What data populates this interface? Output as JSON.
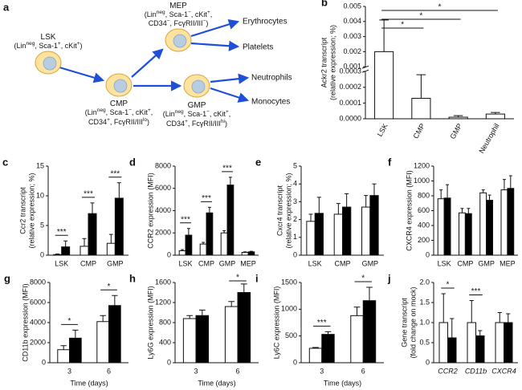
{
  "diagram": {
    "panel": "a",
    "nodes": [
      {
        "lines": [
          [
            "LSK"
          ],
          [
            "(Lin",
            "neg",
            ", Sca-1",
            "+",
            ", cKit",
            "+",
            ")"
          ]
        ]
      },
      {
        "lines": [
          [
            "CMP"
          ],
          [
            "(Lin",
            "neg",
            ", Sca-1",
            "−",
            ", cKit",
            "+",
            ","
          ],
          [
            "CD34",
            "+",
            ", FcγRII/III",
            "lo",
            ")"
          ]
        ]
      },
      {
        "lines": [
          [
            "MEP"
          ],
          [
            "(Lin",
            "neg",
            ", Sca-1",
            "−",
            ", cKit",
            "+",
            ","
          ],
          [
            "CD34",
            "−",
            ", FcγRII/III",
            "−",
            ")"
          ]
        ]
      },
      {
        "lines": [
          [
            "GMP"
          ],
          [
            "(Lin",
            "neg",
            ", Sca-1",
            "−",
            ", cKit",
            "+",
            ","
          ],
          [
            "CD34",
            "+",
            ", FcγRII/III",
            "hi",
            ")"
          ]
        ]
      }
    ],
    "outputs": [
      "Erythrocytes",
      "Platelets",
      "Neutrophils",
      "Monocytes"
    ]
  },
  "chart_data": [
    {
      "type": "bar",
      "panel": "b",
      "ylabel": [
        "Ackr2 transcript",
        "(relative expression; %)"
      ],
      "categories": [
        "LSK",
        "CMP",
        "GMP",
        "Neutrophil"
      ],
      "series": [
        {
          "color": "#ffffff",
          "values": [
            0.002,
            0.00013,
            1e-05,
            3e-05
          ],
          "errors": [
            0.0021,
            0.00015,
            1e-05,
            1e-05
          ]
        }
      ],
      "ylim": [
        0,
        0.005
      ],
      "ybreak": [
        0.0003,
        0.001
      ],
      "yticks": [
        {
          "value": 0,
          "label": "0.0000"
        },
        0.0001,
        0.0002,
        0.0003,
        0.001,
        0.002,
        0.003,
        0.004,
        0.005
      ],
      "stars": [
        null,
        "*",
        "*",
        "*"
      ]
    },
    {
      "type": "bar",
      "panel": "c",
      "ylabel": [
        "Ccr2 transcript",
        "(relative expression; %)"
      ],
      "categories": [
        "LSK",
        "CMP",
        "GMP"
      ],
      "series": [
        {
          "color": "#ffffff",
          "values": [
            0.1,
            1.5,
            2.0
          ],
          "errors": [
            0.1,
            1.3,
            1.5
          ]
        },
        {
          "color": "#000000",
          "values": [
            1.4,
            7.0,
            9.6
          ],
          "errors": [
            1.0,
            1.8,
            2.6
          ]
        }
      ],
      "ylim": [
        0,
        15
      ],
      "yticks": [
        0,
        5,
        10,
        15
      ],
      "stars": [
        "***",
        "***",
        "***"
      ]
    },
    {
      "type": "bar",
      "panel": "d",
      "ylabel": [
        "CCR2 expression (MFI)"
      ],
      "categories": [
        "LSK",
        "CMP",
        "GMP",
        "MEP"
      ],
      "series": [
        {
          "color": "#ffffff",
          "values": [
            400,
            1000,
            2000,
            250
          ],
          "errors": [
            100,
            150,
            200,
            50
          ]
        },
        {
          "color": "#000000",
          "values": [
            1800,
            3800,
            6300,
            300
          ],
          "errors": [
            600,
            500,
            700,
            50
          ]
        }
      ],
      "ylim": [
        0,
        8000
      ],
      "yticks": [
        0,
        2000,
        4000,
        6000,
        8000
      ],
      "stars": [
        "***",
        "***",
        "***",
        null
      ]
    },
    {
      "type": "bar",
      "panel": "e",
      "ylabel": [
        "Cxcr4 transcript",
        "(relative expression; %)"
      ],
      "categories": [
        "LSK",
        "CMP",
        "GMP"
      ],
      "series": [
        {
          "color": "#ffffff",
          "values": [
            1.9,
            2.3,
            2.7
          ],
          "errors": [
            0.4,
            0.6,
            0.65
          ]
        },
        {
          "color": "#000000",
          "values": [
            2.35,
            2.7,
            3.35
          ],
          "errors": [
            0.9,
            0.75,
            0.65
          ]
        }
      ],
      "ylim": [
        0,
        5
      ],
      "yticks": [
        0,
        1,
        2,
        3,
        4,
        5
      ]
    },
    {
      "type": "bar",
      "panel": "f",
      "ylabel": [
        "CXCR4 expression (MFI)"
      ],
      "categories": [
        "LSK",
        "CMP",
        "GMP",
        "MEP"
      ],
      "series": [
        {
          "color": "#ffffff",
          "values": [
            760,
            570,
            840,
            880
          ],
          "errors": [
            120,
            60,
            40,
            140
          ]
        },
        {
          "color": "#000000",
          "values": [
            770,
            560,
            740,
            900
          ],
          "errors": [
            180,
            70,
            70,
            170
          ]
        }
      ],
      "ylim": [
        0,
        1200
      ],
      "yticks": [
        0,
        200,
        400,
        600,
        800,
        1000,
        1200
      ]
    },
    {
      "type": "bar",
      "panel": "g",
      "ylabel": [
        "CD11b expression (MFI)"
      ],
      "xlabel": "Time (days)",
      "categories": [
        "3",
        "6"
      ],
      "series": [
        {
          "color": "#ffffff",
          "values": [
            1300,
            4100
          ],
          "errors": [
            400,
            600
          ]
        },
        {
          "color": "#000000",
          "values": [
            2450,
            5700
          ],
          "errors": [
            800,
            1000
          ]
        }
      ],
      "ylim": [
        0,
        8000
      ],
      "yticks": [
        0,
        2000,
        4000,
        6000,
        8000
      ],
      "stars": [
        "*",
        "*"
      ]
    },
    {
      "type": "bar",
      "panel": "h",
      "ylabel": [
        "Ly6G expression (MFI)"
      ],
      "xlabel": "Time (days)",
      "categories": [
        "3",
        "6"
      ],
      "series": [
        {
          "color": "#ffffff",
          "values": [
            880,
            1120
          ],
          "errors": [
            60,
            100
          ]
        },
        {
          "color": "#000000",
          "values": [
            940,
            1400
          ],
          "errors": [
            110,
            170
          ]
        }
      ],
      "ylim": [
        0,
        1600
      ],
      "yticks": [
        0,
        400,
        800,
        1200,
        1600
      ],
      "stars": [
        null,
        "*"
      ]
    },
    {
      "type": "bar",
      "panel": "i",
      "ylabel": [
        "Ly6C expression (MFI)"
      ],
      "xlabel": "Time (days)",
      "categories": [
        "3",
        "6"
      ],
      "series": [
        {
          "color": "#ffffff",
          "values": [
            270,
            880
          ],
          "errors": [
            15,
            160
          ]
        },
        {
          "color": "#000000",
          "values": [
            530,
            1160
          ],
          "errors": [
            50,
            250
          ]
        }
      ],
      "ylim": [
        0,
        1500
      ],
      "yticks": [
        0,
        500,
        1000,
        1500
      ],
      "stars": [
        "***",
        "*"
      ]
    },
    {
      "type": "bar",
      "panel": "j",
      "ylabel": [
        "Gene transcript",
        "(fold change on mock)"
      ],
      "categories": [
        "CCR2",
        "CD11b",
        "CXCR4"
      ],
      "series": [
        {
          "color": "#ffffff",
          "values": [
            1.0,
            1.0,
            1.0
          ],
          "errors": [
            0.72,
            0.55,
            0.25
          ]
        },
        {
          "color": "#000000",
          "values": [
            0.62,
            0.67,
            1.0
          ],
          "errors": [
            0.48,
            0.13,
            0.22
          ]
        }
      ],
      "ylim": [
        0,
        2
      ],
      "yticks": [
        0,
        0.5,
        {
          "value": 1,
          "label": "1.0"
        },
        1.5,
        {
          "value": 2,
          "label": "2.0"
        }
      ],
      "stars": [
        "*",
        "***",
        null
      ]
    }
  ]
}
